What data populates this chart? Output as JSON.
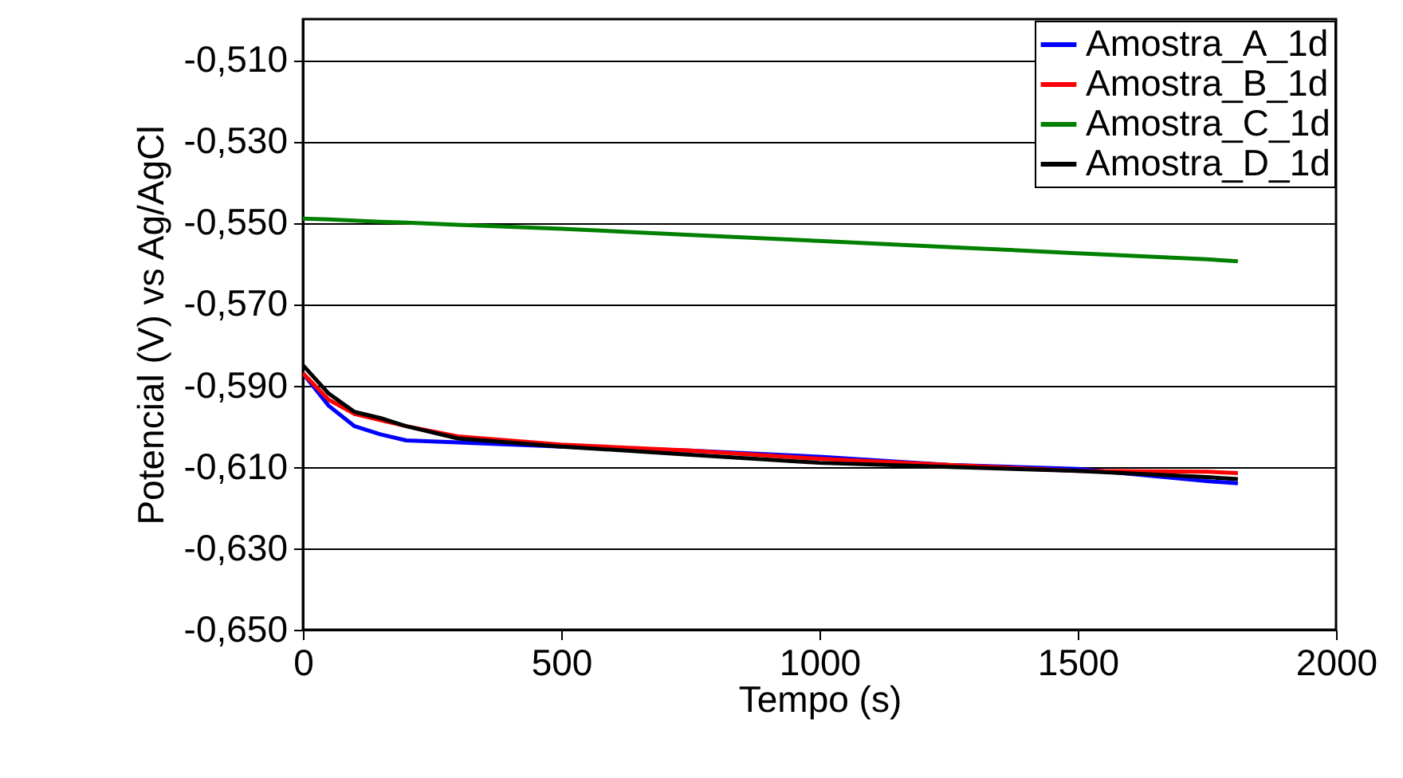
{
  "chart_data": {
    "type": "line",
    "xlabel": "Tempo (s)",
    "ylabel": "Potencial (V) vs Ag/AgCl",
    "x": [
      0,
      50,
      100,
      150,
      200,
      300,
      500,
      750,
      1000,
      1250,
      1500,
      1750,
      1810
    ],
    "series": [
      {
        "name": "Amostra_A_1d",
        "color": "#0000ff",
        "values": [
          -0.587,
          -0.595,
          -0.6,
          -0.602,
          -0.6035,
          -0.604,
          -0.605,
          -0.606,
          -0.6075,
          -0.6095,
          -0.6105,
          -0.6135,
          -0.614
        ]
      },
      {
        "name": "Amostra_B_1d",
        "color": "#ff0000",
        "values": [
          -0.587,
          -0.5935,
          -0.597,
          -0.5985,
          -0.6,
          -0.6025,
          -0.6045,
          -0.606,
          -0.608,
          -0.6095,
          -0.611,
          -0.6112,
          -0.6115
        ]
      },
      {
        "name": "Amostra_C_1d",
        "color": "#008000",
        "values": [
          -0.549,
          -0.5492,
          -0.5495,
          -0.5498,
          -0.55,
          -0.5505,
          -0.5515,
          -0.553,
          -0.5545,
          -0.556,
          -0.5575,
          -0.559,
          -0.5595
        ]
      },
      {
        "name": "Amostra_D_1d",
        "color": "#000000",
        "values": [
          -0.585,
          -0.592,
          -0.5965,
          -0.598,
          -0.6,
          -0.603,
          -0.605,
          -0.607,
          -0.609,
          -0.61,
          -0.611,
          -0.6125,
          -0.613
        ]
      }
    ],
    "xlim": [
      0,
      2000
    ],
    "xticks": [
      0,
      500,
      1000,
      1500,
      2000
    ],
    "ylim": [
      -0.65,
      -0.5
    ],
    "yticks": [
      {
        "value": -0.51,
        "label": "-0,510"
      },
      {
        "value": -0.53,
        "label": "-0,530"
      },
      {
        "value": -0.55,
        "label": "-0,550"
      },
      {
        "value": -0.57,
        "label": "-0,570"
      },
      {
        "value": -0.59,
        "label": "-0,590"
      },
      {
        "value": -0.61,
        "label": "-0,610"
      },
      {
        "value": -0.63,
        "label": "-0,630"
      },
      {
        "value": -0.65,
        "label": "-0,650"
      }
    ],
    "grid": "y",
    "legend": "top right",
    "line_style": "solid"
  }
}
